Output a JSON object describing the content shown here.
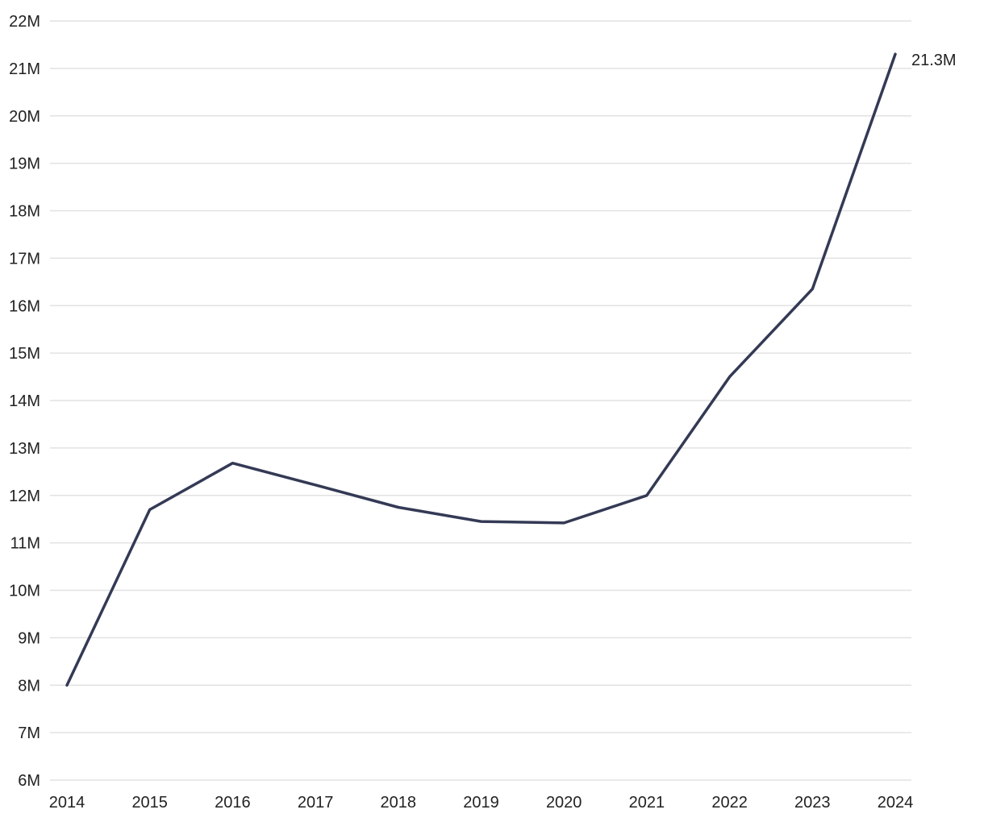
{
  "chart_data": {
    "type": "line",
    "title": "",
    "xlabel": "",
    "ylabel": "",
    "x": [
      "2014",
      "2015",
      "2016",
      "2017",
      "2018",
      "2019",
      "2020",
      "2021",
      "2022",
      "2023",
      "2024"
    ],
    "series": [
      {
        "values": [
          8.0,
          11.7,
          12.68,
          12.22,
          11.75,
          11.45,
          11.42,
          12.0,
          14.5,
          16.35,
          21.3
        ],
        "color": "#343a55"
      }
    ],
    "ylim": [
      6,
      22
    ],
    "yticks": [
      6,
      7,
      8,
      9,
      10,
      11,
      12,
      13,
      14,
      15,
      16,
      17,
      18,
      19,
      20,
      21,
      22
    ],
    "ytick_labels": [
      "6M",
      "7M",
      "8M",
      "9M",
      "10M",
      "11M",
      "12M",
      "13M",
      "14M",
      "15M",
      "16M",
      "17M",
      "18M",
      "19M",
      "20M",
      "21M",
      "22M"
    ],
    "end_label": "21.3M",
    "grid": true,
    "legend": "none"
  }
}
